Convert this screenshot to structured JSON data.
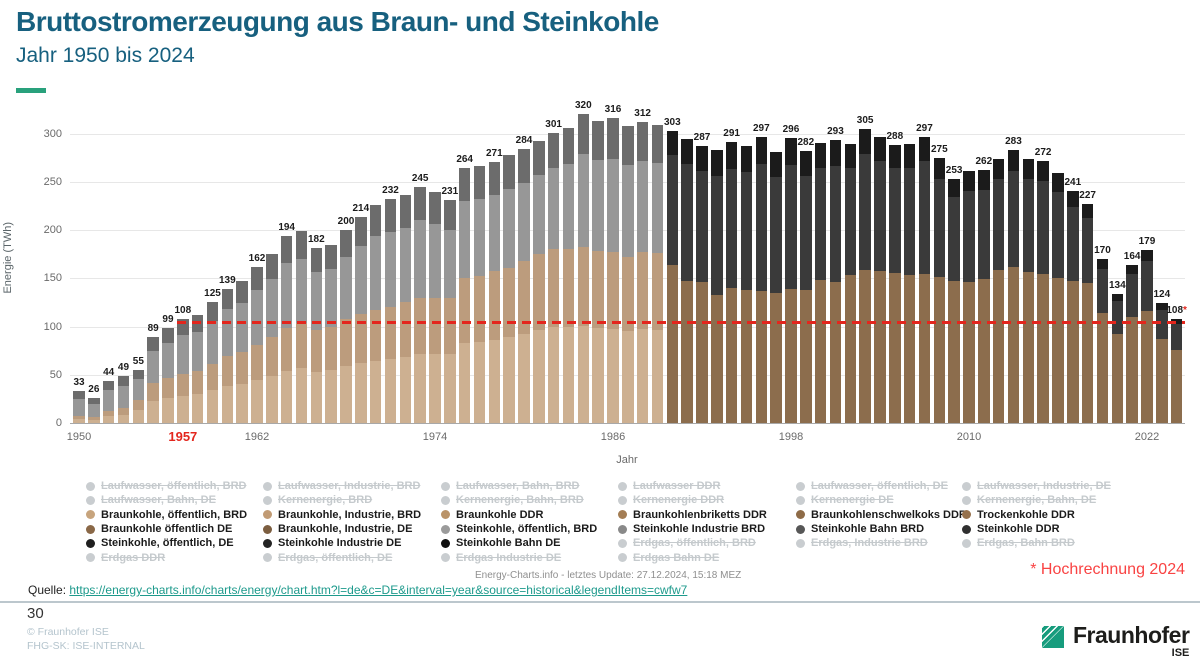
{
  "header": {
    "title": "Bruttostromerzeugung aus Braun- und Steinkohle",
    "subtitle": "Jahr 1950 bis 2024"
  },
  "chart_data": {
    "type": "bar",
    "title": "Bruttostromerzeugung aus Braun- und Steinkohle",
    "subtitle": "Jahr 1950 bis 2024",
    "xlabel": "Jahr",
    "ylabel": "Energie (TWh)",
    "unit": "TWh",
    "start_year": 1950,
    "end_year": 2024,
    "ylim": [
      0,
      330
    ],
    "yticks": [
      0,
      50,
      100,
      150,
      200,
      250,
      300
    ],
    "xticks": [
      1950,
      1957,
      1962,
      1974,
      1986,
      1998,
      2010,
      2022
    ],
    "highlighted_xtick": 1957,
    "grid": true,
    "legend_position": "bottom",
    "reference_line": {
      "value": 106,
      "start_year": 1957,
      "style": "dashed",
      "color": "#e3261d"
    },
    "estimate_year": 2024,
    "estimate_marker": "*",
    "values": [
      33,
      26,
      44,
      49,
      55,
      89,
      99,
      108,
      112,
      125,
      139,
      147,
      162,
      175,
      194,
      199,
      182,
      185,
      200,
      214,
      226,
      232,
      236,
      245,
      240,
      231,
      264,
      267,
      271,
      278,
      284,
      292,
      301,
      306,
      320,
      313,
      316,
      308,
      312,
      309,
      303,
      295,
      287,
      283,
      291,
      287,
      297,
      281,
      296,
      282,
      290,
      293,
      289,
      305,
      297,
      288,
      289,
      297,
      275,
      253,
      261,
      262,
      274,
      283,
      274,
      272,
      259,
      241,
      227,
      170,
      134,
      164,
      179,
      124,
      108
    ],
    "labeled_years": [
      1950,
      1951,
      1952,
      1953,
      1954,
      1955,
      1956,
      1957,
      1959,
      1960,
      1962,
      1964,
      1966,
      1968,
      1969,
      1971,
      1973,
      1975,
      1976,
      1978,
      1980,
      1982,
      1984,
      1986,
      1988,
      1990,
      1992,
      1994,
      1996,
      1998,
      1999,
      2001,
      2003,
      2005,
      2007,
      2008,
      2009,
      2011,
      2013,
      2015,
      2017,
      2018,
      2019,
      2020,
      2021,
      2022,
      2023,
      2024
    ],
    "lignite_fraction": [
      0.21,
      0.25,
      0.28,
      0.31,
      0.43,
      0.47,
      0.47,
      0.47,
      0.48,
      0.49,
      0.5,
      0.5,
      0.5,
      0.51,
      0.51,
      0.52,
      0.53,
      0.54,
      0.54,
      0.53,
      0.52,
      0.52,
      0.53,
      0.53,
      0.54,
      0.56,
      0.57,
      0.57,
      0.58,
      0.58,
      0.59,
      0.6,
      0.6,
      0.59,
      0.57,
      0.57,
      0.56,
      0.56,
      0.57,
      0.57,
      0.54,
      0.5,
      0.51,
      0.47,
      0.48,
      0.48,
      0.46,
      0.48,
      0.47,
      0.49,
      0.51,
      0.5,
      0.53,
      0.52,
      0.53,
      0.54,
      0.53,
      0.52,
      0.55,
      0.58,
      0.56,
      0.57,
      0.58,
      0.57,
      0.57,
      0.57,
      0.58,
      0.61,
      0.64,
      0.67,
      0.69,
      0.67,
      0.65,
      0.7,
      0.7
    ],
    "era_split_year": 1990
  },
  "colors": {
    "title_teal": "#17607f",
    "accent_green": "#29a17c",
    "dash_red": "#e3261d",
    "estimate_red": "#f94343",
    "link_teal": "#1d9a8c",
    "logo_green": "#179c7d",
    "west_era": {
      "tan_light": "#cdb091",
      "tan_dark": "#bc9c7d",
      "gray_mid": "#979797",
      "gray_dark": "#6c6c6c"
    },
    "de_era": {
      "brown": "#8c6d4d",
      "coal": "#3a3a3a",
      "cap": "#1b1b1b"
    },
    "disabled_legend": "#c9cdd0"
  },
  "legend": {
    "columns": [
      [
        {
          "label": "Laufwasser, öffentlich, BRD",
          "on": false,
          "dot": "#c9cdd0"
        },
        {
          "label": "Laufwasser, Bahn, DE",
          "on": false,
          "dot": "#c9cdd0"
        },
        {
          "label": "Braunkohle, öffentlich, BRD",
          "on": true,
          "dot": "#c7a47d"
        },
        {
          "label": "Braunkohle öffentlich DE",
          "on": true,
          "dot": "#8a6847"
        },
        {
          "label": "Steinkohle, öffentlich, DE",
          "on": true,
          "dot": "#1f1f1f"
        },
        {
          "label": "Erdgas DDR",
          "on": false,
          "dot": "#c9cdd0"
        }
      ],
      [
        {
          "label": "Laufwasser, Industrie, BRD",
          "on": false,
          "dot": "#c9cdd0"
        },
        {
          "label": "Kernenergie, BRD",
          "on": false,
          "dot": "#c9cdd0"
        },
        {
          "label": "Braunkohle, Industrie, BRD",
          "on": true,
          "dot": "#c19b74"
        },
        {
          "label": "Braunkohle, Industrie, DE",
          "on": true,
          "dot": "#7c5e40"
        },
        {
          "label": "Steinkohle Industrie DE",
          "on": true,
          "dot": "#232323"
        },
        {
          "label": "Erdgas, öffentlich, DE",
          "on": false,
          "dot": "#c9cdd0"
        }
      ],
      [
        {
          "label": "Laufwasser, Bahn, BRD",
          "on": false,
          "dot": "#c9cdd0"
        },
        {
          "label": "Kernenergie, Bahn, BRD",
          "on": false,
          "dot": "#c9cdd0"
        },
        {
          "label": "Braunkohle DDR",
          "on": true,
          "dot": "#ba9368"
        },
        {
          "label": "Steinkohle, öffentlich, BRD",
          "on": true,
          "dot": "#9b9b9b"
        },
        {
          "label": "Steinkohle Bahn DE",
          "on": true,
          "dot": "#101010"
        },
        {
          "label": "Erdgas Industrie DE",
          "on": false,
          "dot": "#c9cdd0"
        }
      ],
      [
        {
          "label": "Laufwasser DDR",
          "on": false,
          "dot": "#c9cdd0"
        },
        {
          "label": "Kernenergie DDR",
          "on": false,
          "dot": "#c9cdd0"
        },
        {
          "label": "Braunkohlenbriketts DDR",
          "on": true,
          "dot": "#a37d54"
        },
        {
          "label": "Steinkohle Industrie BRD",
          "on": true,
          "dot": "#898989"
        },
        {
          "label": "Erdgas, öffentlich, BRD",
          "on": false,
          "dot": "#c9cdd0"
        },
        {
          "label": "Erdgas Bahn DE",
          "on": false,
          "dot": "#c9cdd0"
        }
      ],
      [
        {
          "label": "Laufwasser, öffentlich, DE",
          "on": false,
          "dot": "#c9cdd0"
        },
        {
          "label": "Kernenergie DE",
          "on": false,
          "dot": "#c9cdd0"
        },
        {
          "label": "Braunkohlenschwelkoks DDR",
          "on": true,
          "dot": "#8e6b47"
        },
        {
          "label": "Steinkohle Bahn BRD",
          "on": true,
          "dot": "#575757"
        },
        {
          "label": "Erdgas, Industrie BRD",
          "on": false,
          "dot": "#c9cdd0"
        }
      ],
      [
        {
          "label": "Laufwasser, Industrie, DE",
          "on": false,
          "dot": "#c9cdd0"
        },
        {
          "label": "Kernenergie, Bahn, DE",
          "on": false,
          "dot": "#c9cdd0"
        },
        {
          "label": "Trockenkohle DDR",
          "on": true,
          "dot": "#96714c"
        },
        {
          "label": "Steinkohle DDR",
          "on": true,
          "dot": "#303030"
        },
        {
          "label": "Erdgas, Bahn BRD",
          "on": false,
          "dot": "#c9cdd0"
        }
      ]
    ]
  },
  "footer": {
    "update_note": "Energy-Charts.info - letztes Update: 27.12.2024, 15:18 MEZ",
    "estimate_note": "* Hochrechnung 2024",
    "source_label": "Quelle:",
    "source_url": "https://energy-charts.info/charts/energy/chart.htm?l=de&c=DE&interval=year&source=historical&legendItems=cwfw7",
    "page_number": "30",
    "copyright": "© Fraunhofer ISE",
    "classification": "FHG-SK: ISE-INTERNAL",
    "logo_name": "Fraunhofer",
    "logo_sub": "ISE"
  }
}
